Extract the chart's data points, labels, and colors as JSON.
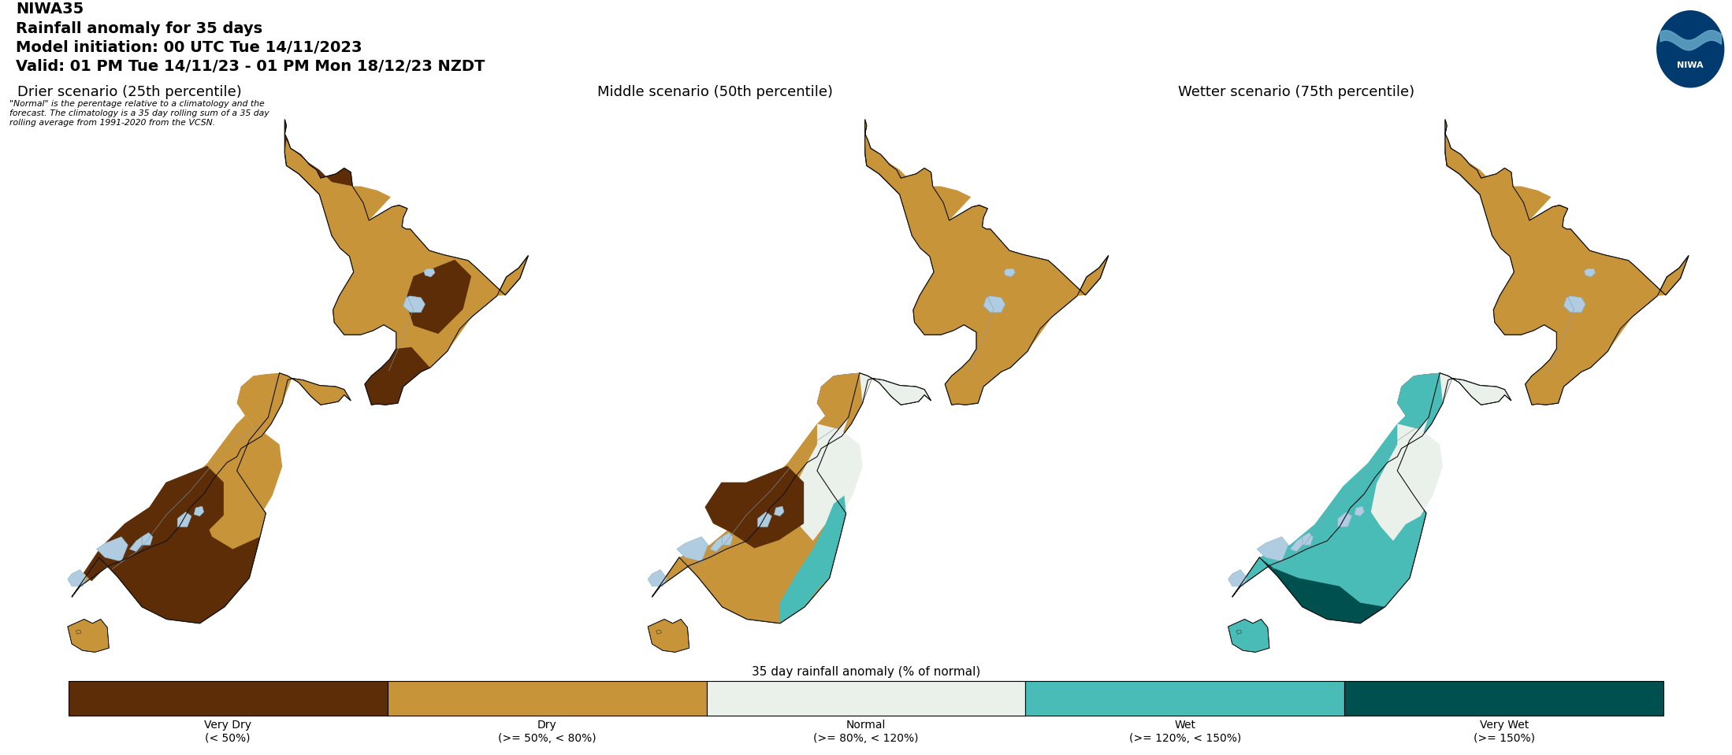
{
  "title_line1": "NIWA35",
  "title_line2": "Rainfall anomaly for 35 days",
  "title_line3": "Model initiation: 00 UTC Tue 14/11/2023",
  "title_line4": "Valid: 01 PM Tue 14/11/23 - 01 PM Mon 18/12/23 NZDT",
  "footnote": "\"Normal\" is the perentage relative to a climatology and the\nforecast. The climatology is a 35 day rolling sum of a 35 day\nrolling average from 1991-2020 from the VCSN.",
  "panel_titles": [
    "Drier scenario (25th percentile)",
    "Middle scenario (50th percentile)",
    "Wetter scenario (75th percentile)"
  ],
  "legend_title": "35 day rainfall anomaly (% of normal)",
  "legend_labels": [
    "Very Dry\n(< 50%)",
    "Dry\n(>= 50%, < 80%)",
    "Normal\n(>= 80%, < 120%)",
    "Wet\n(>= 120%, < 150%)",
    "Very Wet\n(>= 150%)"
  ],
  "legend_colors": [
    "#5c2d07",
    "#c8943a",
    "#eaf0ea",
    "#4abcb8",
    "#005050"
  ],
  "very_dry_color": "#5c2d07",
  "dry_color": "#c8943a",
  "normal_color": "#eaf0ea",
  "wet_color": "#4abcb8",
  "very_wet_color": "#005050",
  "water_color": "#b0cce0",
  "background_color": "#dce8f2",
  "panel_bg": "#dce8f2",
  "fig_bg": "#ffffff",
  "niwa_logo_color": "#003a6e",
  "map_border_color": "#111111"
}
